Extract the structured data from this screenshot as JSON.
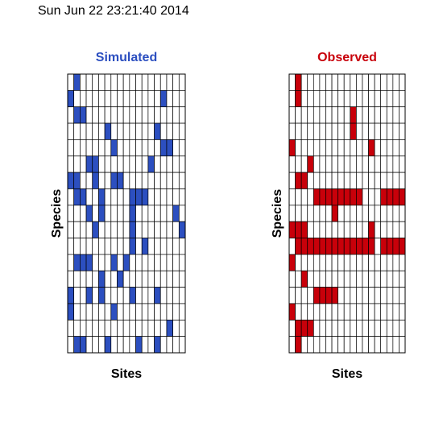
{
  "timestamp": "Sun Jun 22 23:21:40 2014",
  "chart_data": [
    {
      "type": "heatmap",
      "title": "Simulated",
      "title_color": "#2c4fc0",
      "fill_color": "#2c4fc0",
      "empty_color": "#ffffff",
      "xlabel": "Sites",
      "ylabel": "Species",
      "n_sites": 19,
      "n_species": 17,
      "matrix": [
        [
          0,
          1,
          0,
          0,
          0,
          0,
          0,
          0,
          0,
          0,
          0,
          0,
          0,
          0,
          0,
          0,
          0,
          0,
          0
        ],
        [
          1,
          0,
          0,
          0,
          0,
          0,
          0,
          0,
          0,
          0,
          0,
          0,
          0,
          0,
          0,
          1,
          0,
          0,
          0
        ],
        [
          0,
          1,
          1,
          0,
          0,
          0,
          0,
          0,
          0,
          0,
          0,
          0,
          0,
          0,
          0,
          0,
          0,
          0,
          0
        ],
        [
          0,
          0,
          0,
          0,
          0,
          0,
          1,
          0,
          0,
          0,
          0,
          0,
          0,
          0,
          1,
          0,
          0,
          0,
          0
        ],
        [
          0,
          0,
          0,
          0,
          0,
          0,
          0,
          1,
          0,
          0,
          0,
          0,
          0,
          0,
          0,
          1,
          1,
          0,
          0
        ],
        [
          0,
          0,
          0,
          1,
          1,
          0,
          0,
          0,
          0,
          0,
          0,
          0,
          0,
          1,
          0,
          0,
          0,
          0,
          0
        ],
        [
          1,
          1,
          0,
          0,
          1,
          0,
          0,
          1,
          1,
          0,
          0,
          0,
          0,
          0,
          0,
          0,
          0,
          0,
          0
        ],
        [
          0,
          1,
          1,
          0,
          0,
          1,
          0,
          0,
          0,
          0,
          1,
          1,
          1,
          0,
          0,
          0,
          0,
          0,
          0
        ],
        [
          0,
          0,
          0,
          1,
          0,
          1,
          0,
          0,
          0,
          0,
          1,
          0,
          0,
          0,
          0,
          0,
          0,
          1,
          0
        ],
        [
          0,
          0,
          0,
          0,
          1,
          0,
          0,
          0,
          0,
          0,
          1,
          0,
          0,
          0,
          0,
          0,
          0,
          0,
          1
        ],
        [
          0,
          0,
          0,
          0,
          0,
          0,
          0,
          0,
          0,
          0,
          1,
          0,
          1,
          0,
          0,
          0,
          0,
          0,
          0
        ],
        [
          0,
          1,
          1,
          1,
          0,
          0,
          0,
          1,
          0,
          1,
          0,
          0,
          0,
          0,
          0,
          0,
          0,
          0,
          0
        ],
        [
          0,
          0,
          0,
          0,
          0,
          1,
          0,
          0,
          1,
          0,
          0,
          0,
          0,
          0,
          0,
          0,
          0,
          0,
          0
        ],
        [
          1,
          0,
          0,
          1,
          0,
          1,
          0,
          0,
          0,
          0,
          1,
          0,
          0,
          0,
          1,
          0,
          0,
          0,
          0
        ],
        [
          1,
          0,
          0,
          0,
          0,
          0,
          0,
          1,
          0,
          0,
          0,
          0,
          0,
          0,
          0,
          0,
          0,
          0,
          0
        ],
        [
          0,
          0,
          0,
          0,
          0,
          0,
          0,
          0,
          0,
          0,
          0,
          0,
          0,
          0,
          0,
          0,
          1,
          0,
          0
        ],
        [
          0,
          1,
          1,
          0,
          0,
          0,
          1,
          0,
          0,
          0,
          0,
          1,
          0,
          0,
          1,
          0,
          0,
          0,
          0
        ]
      ]
    },
    {
      "type": "heatmap",
      "title": "Observed",
      "title_color": "#c8000a",
      "fill_color": "#c8000a",
      "empty_color": "#ffffff",
      "xlabel": "Sites",
      "ylabel": "Species",
      "n_sites": 19,
      "n_species": 17,
      "matrix": [
        [
          0,
          1,
          0,
          0,
          0,
          0,
          0,
          0,
          0,
          0,
          0,
          0,
          0,
          0,
          0,
          0,
          0,
          0,
          0
        ],
        [
          0,
          1,
          0,
          0,
          0,
          0,
          0,
          0,
          0,
          0,
          0,
          0,
          0,
          0,
          0,
          0,
          0,
          0,
          0
        ],
        [
          0,
          0,
          0,
          0,
          0,
          0,
          0,
          0,
          0,
          0,
          1,
          0,
          0,
          0,
          0,
          0,
          0,
          0,
          0
        ],
        [
          0,
          0,
          0,
          0,
          0,
          0,
          0,
          0,
          0,
          0,
          1,
          0,
          0,
          0,
          0,
          0,
          0,
          0,
          0
        ],
        [
          1,
          0,
          0,
          0,
          0,
          0,
          0,
          0,
          0,
          0,
          0,
          0,
          0,
          1,
          0,
          0,
          0,
          0,
          0
        ],
        [
          0,
          0,
          0,
          1,
          0,
          0,
          0,
          0,
          0,
          0,
          0,
          0,
          0,
          0,
          0,
          0,
          0,
          0,
          0
        ],
        [
          0,
          1,
          1,
          0,
          0,
          0,
          0,
          0,
          0,
          0,
          0,
          0,
          0,
          0,
          0,
          0,
          0,
          0,
          0
        ],
        [
          0,
          0,
          0,
          0,
          1,
          1,
          1,
          1,
          1,
          1,
          1,
          1,
          0,
          0,
          0,
          1,
          1,
          1,
          1
        ],
        [
          0,
          0,
          0,
          0,
          0,
          0,
          0,
          1,
          0,
          0,
          0,
          0,
          0,
          0,
          0,
          0,
          0,
          0,
          0
        ],
        [
          1,
          1,
          1,
          0,
          0,
          0,
          0,
          0,
          0,
          0,
          0,
          0,
          0,
          1,
          0,
          0,
          0,
          0,
          0
        ],
        [
          0,
          1,
          1,
          1,
          1,
          1,
          1,
          1,
          1,
          1,
          1,
          1,
          1,
          1,
          0,
          1,
          1,
          1,
          1
        ],
        [
          1,
          0,
          0,
          0,
          0,
          0,
          0,
          0,
          0,
          0,
          0,
          0,
          0,
          0,
          0,
          0,
          0,
          0,
          0
        ],
        [
          0,
          0,
          1,
          0,
          0,
          0,
          0,
          0,
          0,
          0,
          0,
          0,
          0,
          0,
          0,
          0,
          0,
          0,
          0
        ],
        [
          0,
          0,
          0,
          0,
          1,
          1,
          1,
          1,
          0,
          0,
          0,
          0,
          0,
          0,
          0,
          0,
          0,
          0,
          0
        ],
        [
          1,
          0,
          0,
          0,
          0,
          0,
          0,
          0,
          0,
          0,
          0,
          0,
          0,
          0,
          0,
          0,
          0,
          0,
          0
        ],
        [
          0,
          1,
          1,
          1,
          0,
          0,
          0,
          0,
          0,
          0,
          0,
          0,
          0,
          0,
          0,
          0,
          0,
          0,
          0
        ],
        [
          0,
          1,
          0,
          0,
          0,
          0,
          0,
          0,
          0,
          0,
          0,
          0,
          0,
          0,
          0,
          0,
          0,
          0,
          0
        ]
      ]
    }
  ]
}
